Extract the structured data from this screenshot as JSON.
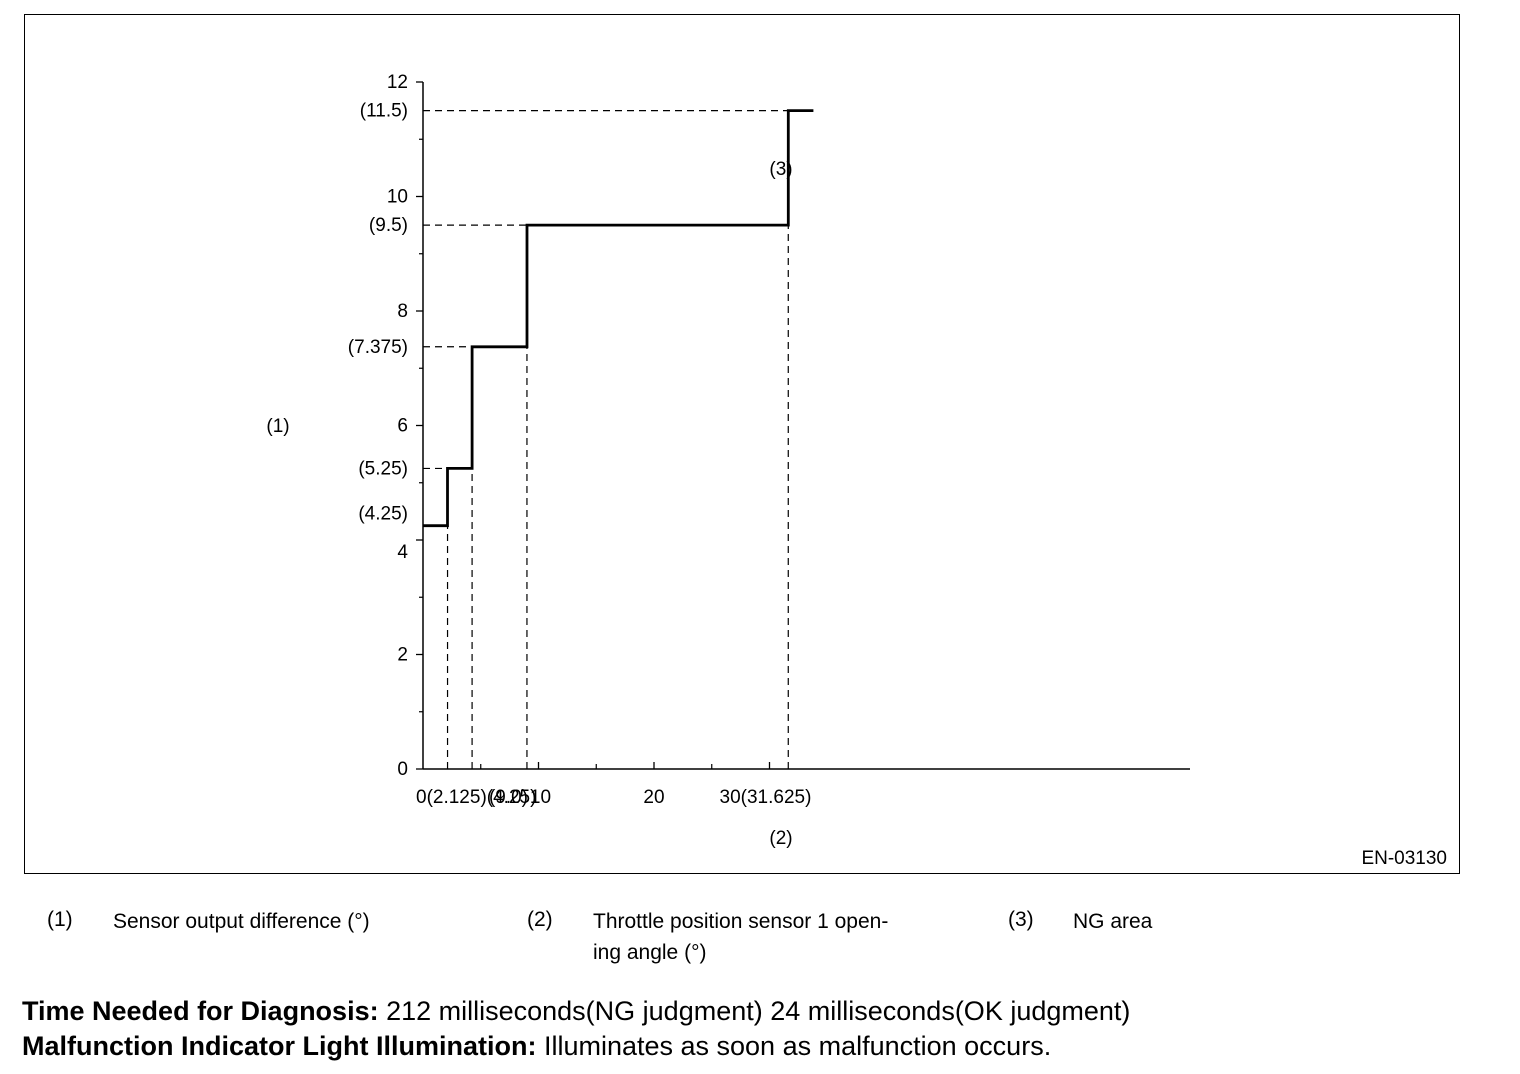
{
  "chart_data": {
    "type": "line",
    "step": true,
    "figure_id": "EN-03130",
    "ylabel": "(1)",
    "xlabel": "(2)",
    "region_label": "(3)",
    "xlim": [
      0,
      33.5
    ],
    "ylim": [
      0,
      12
    ],
    "x_major_ticks": [
      0,
      10,
      20,
      30
    ],
    "x_minor_ticks": [
      5,
      15,
      25
    ],
    "y_major_ticks": [
      0,
      2,
      4,
      6,
      8,
      10,
      12
    ],
    "y_minor_ticks": [
      1,
      3,
      5,
      7,
      9,
      11
    ],
    "x_tick_labels": [
      {
        "x": 0,
        "label": "0(2.125)(4.25)"
      },
      {
        "x": 9.0,
        "label": "(9.0)"
      },
      {
        "x": 10,
        "label": "10"
      },
      {
        "x": 20,
        "label": "20"
      },
      {
        "x": 30,
        "label": "30(31.625)"
      }
    ],
    "y_tick_labels": [
      {
        "y": 12,
        "label": "12"
      },
      {
        "y": 11.5,
        "label": "(11.5)"
      },
      {
        "y": 10,
        "label": "10"
      },
      {
        "y": 9.5,
        "label": "(9.5)"
      },
      {
        "y": 8,
        "label": "8"
      },
      {
        "y": 7.375,
        "label": "(7.375)"
      },
      {
        "y": 6,
        "label": "6"
      },
      {
        "y": 5.25,
        "label": "(5.25)"
      },
      {
        "y": 4.25,
        "label": "(4.25)"
      },
      {
        "y": 4,
        "label": "4"
      },
      {
        "y": 2,
        "label": "2"
      },
      {
        "y": 0,
        "label": "0"
      }
    ],
    "series": [
      {
        "points": [
          [
            0,
            4.25
          ],
          [
            2.125,
            4.25
          ],
          [
            2.125,
            5.25
          ],
          [
            4.25,
            5.25
          ],
          [
            4.25,
            7.375
          ],
          [
            9.0,
            7.375
          ],
          [
            9.0,
            9.5
          ],
          [
            31.625,
            9.5
          ],
          [
            31.625,
            11.5
          ],
          [
            33.8,
            11.5
          ]
        ]
      }
    ],
    "reference_lines": {
      "horizontal": [
        4.25,
        5.25,
        7.375,
        9.5,
        11.5
      ],
      "vertical": [
        2.125,
        4.25,
        9.0,
        31.625
      ]
    }
  },
  "legend": [
    {
      "num": "(1)",
      "text": "Sensor output difference (°)"
    },
    {
      "num": "(2)",
      "text": "Throttle position sensor 1 open-\ning angle (°)"
    },
    {
      "num": "(3)",
      "text": "NG area"
    }
  ],
  "footer": {
    "time_label": "Time Needed for Diagnosis:",
    "time_value": " 212 milliseconds(NG judgment) 24 milliseconds(OK judgment)",
    "mil_label": "Malfunction Indicator Light Illumination:",
    "mil_value": " Illuminates as soon as malfunction occurs."
  }
}
